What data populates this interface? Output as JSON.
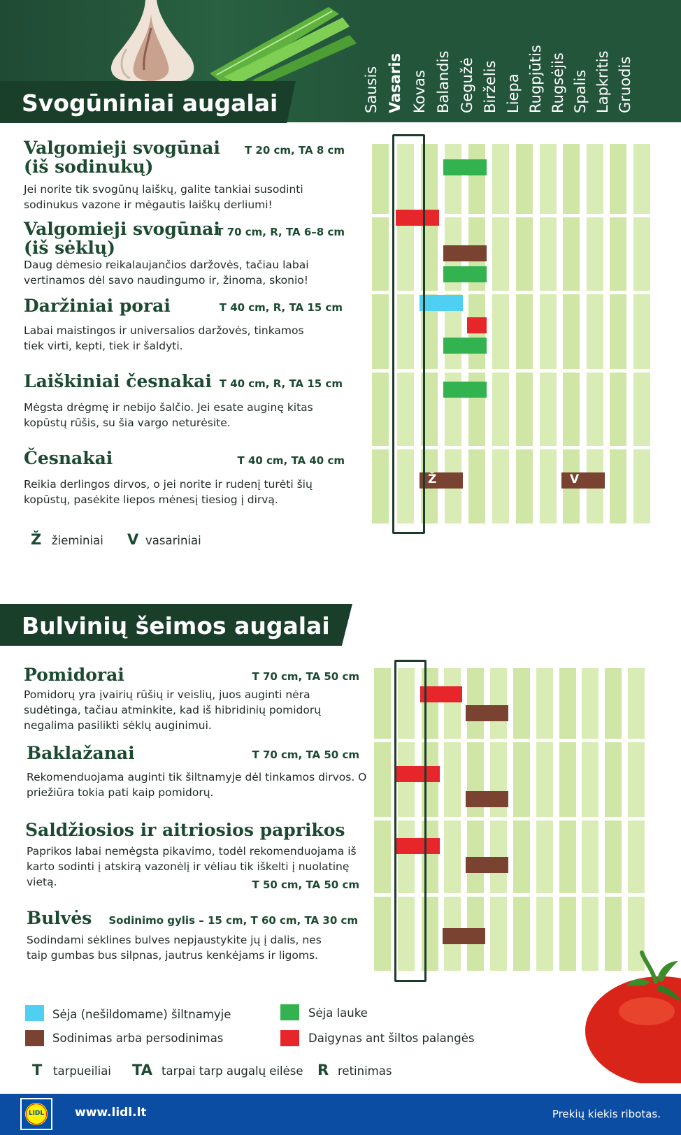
{
  "section1": {
    "title": "Svogūniniai augalai",
    "plants": [
      {
        "name": "Valgomieji svogūnai (iš sodinukų)",
        "meta": "T 20 cm, TA 8 cm",
        "description": "Jei norite tik svogūnų laiškų, galite tankiai susodinti sodinukus vazone ir mėgautis laiškų derliumi!"
      },
      {
        "name": "Valgomieji svogūnai (iš sėklų)",
        "meta": "T 70 cm, R, TA 6–8 cm",
        "description": "Daug dėmesio reikalaujančios daržovės, tačiau labai vertinamos dėl savo naudingumo ir, žinoma, skonio!"
      },
      {
        "name": "Daržiniai porai",
        "meta": "T 40 cm, R, TA 15 cm",
        "description": "Labai maistingos ir universalios daržovės, tinkamos tiek virti, kepti, tiek ir šaldyti."
      },
      {
        "name": "Laiškiniai česnakai",
        "meta": "T 40 cm, R, TA 15 cm",
        "description": "Mėgsta drėgmę ir nebijo šalčio. Jei esate auginę kitas kopūstų rūšis, su šia vargo neturėsite."
      },
      {
        "name": "Česnakai",
        "meta": "T 40 cm, TA 40 cm",
        "description": "Reikia derlingos dirvos, o jei norite ir rudenį turėti šių kopūstų, pasėkite liepos mėnesį tiesiog į dirvą."
      }
    ],
    "legend": [
      {
        "letter": "Ž",
        "text": "žieminiai"
      },
      {
        "letter": "V",
        "text": "vasariniai"
      }
    ]
  },
  "months": [
    "Sausis",
    "Vasaris",
    "Kovas",
    "Balandis",
    "Gegužė",
    "Birželis",
    "Liepa",
    "Rugpjūtis",
    "Rugsėjis",
    "Spalis",
    "Lapkritis",
    "Gruodis"
  ],
  "current_month": "Vasaris",
  "calendar1": {
    "activities": [
      {
        "plant": "Valgomieji svogūnai (iš sodinukų)",
        "type": "sowing-outdoor",
        "months": [
          "Balandis",
          "Gegužė"
        ]
      },
      {
        "plant": "Valgomieji svogūnai (iš sodinukų)",
        "type": "seedlings-windowsill",
        "months": [
          "Vasaris",
          "Kovas"
        ]
      },
      {
        "plant": "Valgomieji svogūnai (iš sėklų)",
        "type": "planting",
        "months": [
          "Balandis",
          "Gegužė"
        ]
      },
      {
        "plant": "Valgomieji svogūnai (iš sėklų)",
        "type": "sowing-outdoor",
        "months": [
          "Balandis",
          "Gegužė"
        ]
      },
      {
        "plant": "Daržiniai porai",
        "type": "sowing-greenhouse",
        "months": [
          "Kovas",
          "Balandis"
        ]
      },
      {
        "plant": "Daržiniai porai",
        "type": "seedlings-windowsill",
        "months": [
          "Gegužė"
        ]
      },
      {
        "plant": "Daržiniai porai",
        "type": "sowing-outdoor",
        "months": [
          "Balandis",
          "Gegužė"
        ]
      },
      {
        "plant": "Laiškiniai česnakai",
        "type": "sowing-outdoor",
        "months": [
          "Balandis",
          "Gegužė"
        ]
      },
      {
        "plant": "Česnakai",
        "type": "planting",
        "months": [
          "Kovas",
          "Balandis"
        ],
        "mark": "Ž"
      },
      {
        "plant": "Česnakai",
        "type": "planting",
        "months": [
          "Rugsėjis",
          "Spalis"
        ],
        "mark": "V"
      }
    ]
  },
  "section2": {
    "title": "Bulvinių šeimos augalai",
    "plants": [
      {
        "name": "Pomidorai",
        "meta": "T 70 cm, TA 50 cm",
        "description": "Pomidorų yra įvairių rūšių ir veislių, juos auginti nėra sudėtinga, tačiau atminkite, kad iš hibridinių pomidorų negalima pasilikti sėklų auginimui."
      },
      {
        "name": "Baklažanai",
        "meta": "T 70 cm, TA 50 cm",
        "description": "Rekomenduojama auginti tik šiltnamyje dėl tinkamos dirvos. O priežiūra tokia pati kaip pomidorų."
      },
      {
        "name": "Saldžiosios ir aitriosios paprikos",
        "meta": "T 50 cm, TA 50 cm",
        "description": "Paprikos labai nemėgsta pikavimo, todėl rekomenduojama iš karto sodinti į atskirą vazonėlį ir vėliau tik iškelti į nuolatinę vietą."
      },
      {
        "name": "Bulvės",
        "meta": "Sodinimo gylis – 15 cm, T 60 cm, TA 30 cm",
        "description": "Sodindami sėklines bulves nepjaustykite jų į dalis, nes taip gumbas bus silpnas, jautrus kenkėjams ir ligoms."
      }
    ]
  },
  "calendar2": {
    "activities": [
      {
        "plant": "Pomidorai",
        "type": "seedlings-windowsill",
        "months": [
          "Kovas",
          "Balandis"
        ]
      },
      {
        "plant": "Pomidorai",
        "type": "planting",
        "months": [
          "Gegužė",
          "Birželis"
        ]
      },
      {
        "plant": "Baklažanai",
        "type": "seedlings-windowsill",
        "months": [
          "Vasaris",
          "Kovas"
        ]
      },
      {
        "plant": "Baklažanai",
        "type": "planting",
        "months": [
          "Gegužė",
          "Birželis"
        ]
      },
      {
        "plant": "Saldžiosios ir aitriosios paprikos",
        "type": "seedlings-windowsill",
        "months": [
          "Vasaris",
          "Kovas"
        ]
      },
      {
        "plant": "Saldžiosios ir aitriosios paprikos",
        "type": "planting",
        "months": [
          "Gegužė",
          "Birželis"
        ]
      },
      {
        "plant": "Bulvės",
        "type": "planting",
        "months": [
          "Balandis",
          "Gegužė"
        ]
      }
    ]
  },
  "legend": {
    "items": [
      {
        "key": "sowing-greenhouse",
        "text": "Sėja (nešildomame) šiltnamyje",
        "color": "#4fd0f3"
      },
      {
        "key": "sowing-outdoor",
        "text": "Sėja lauke",
        "color": "#33b34f"
      },
      {
        "key": "planting",
        "text": "Sodinimas arba persodinimas",
        "color": "#7a4331"
      },
      {
        "key": "seedlings-windowsill",
        "text": "Daigynas ant šiltos palangės",
        "color": "#e6262b"
      }
    ],
    "abbreviations": [
      {
        "letter": "T",
        "text": "tarpueiliai"
      },
      {
        "letter": "TA",
        "text": "tarpai tarp augalų eilėse"
      },
      {
        "letter": "R",
        "text": "retinimas"
      }
    ]
  },
  "footer": {
    "logo_text": "LIDL",
    "url": "www.lidl.lt",
    "note": "Prekių kiekis ribotas."
  },
  "colors": {
    "header": "#23553a",
    "title_bar": "#193f2b",
    "grid_light": "#cfe6a7",
    "footer": "#0b4da2"
  }
}
